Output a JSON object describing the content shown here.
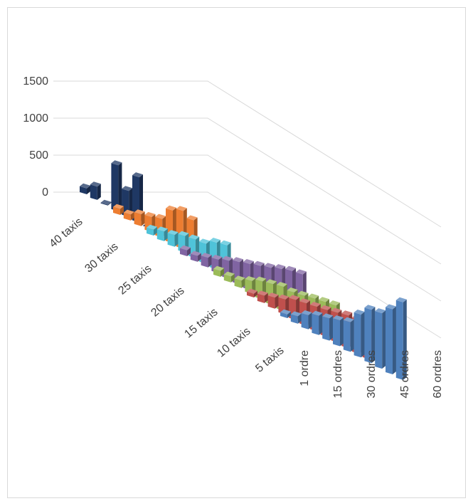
{
  "chart_data": {
    "type": "bar",
    "subtype": "3d-column",
    "title": "",
    "xlabel": "",
    "ylabel": "",
    "ylim": [
      0,
      1500
    ],
    "y_ticks": [
      "0",
      "500",
      "1000",
      "1500"
    ],
    "grid": true,
    "legend": "none",
    "x_tick_labels": [
      "1 ordre",
      "15 ordres",
      "30 ordres",
      "45 ordres",
      "60 ordres"
    ],
    "series_tick_labels": [
      "40 taxis",
      "30 taxis",
      "25 taxis",
      "20 taxis",
      "15 taxis",
      "10 taxis",
      "5 taxis"
    ],
    "series": [
      {
        "label": "40 taxis",
        "color": "#1f3864",
        "values": [
          80,
          180,
          10,
          620,
          350,
          610,
          0,
          0,
          0,
          0,
          0,
          0
        ]
      },
      {
        "label": "30 taxis",
        "color": "#ed7d31",
        "values": [
          80,
          80,
          160,
          200,
          250,
          440,
          510,
          460,
          0,
          0,
          0,
          0
        ]
      },
      {
        "label": "25 taxis",
        "color": "#4fc3d9",
        "values": [
          80,
          130,
          160,
          220,
          250,
          270,
          360,
          400,
          0,
          0,
          0,
          0
        ]
      },
      {
        "label": "20 taxis",
        "color": "#8064a2",
        "values": [
          80,
          80,
          130,
          180,
          240,
          300,
          350,
          400,
          450,
          510,
          560,
          590
        ]
      },
      {
        "label": "15 taxis",
        "color": "#9bbb59",
        "values": [
          80,
          80,
          100,
          170,
          240,
          280,
          320,
          320,
          350,
          390,
          420,
          450
        ]
      },
      {
        "label": "10 taxis",
        "color": "#c0504d",
        "values": [
          50,
          100,
          150,
          200,
          270,
          300,
          330,
          360,
          400,
          440,
          460,
          500
        ]
      },
      {
        "label": "5 taxis",
        "color": "#4f81bd",
        "values": [
          50,
          100,
          190,
          260,
          300,
          350,
          400,
          580,
          720,
          750,
          880,
          1050
        ]
      }
    ]
  }
}
